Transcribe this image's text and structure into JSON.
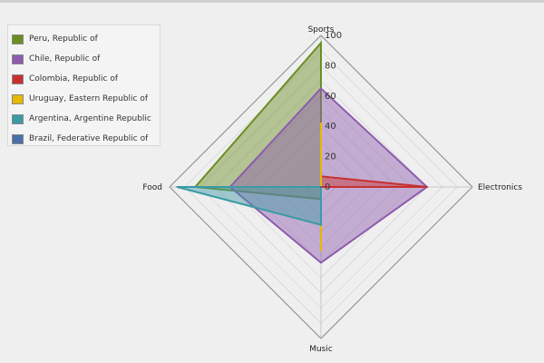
{
  "chart_data": {
    "type": "radar",
    "axes": [
      "Sports",
      "Electronics",
      "Music",
      "Food"
    ],
    "scale": {
      "min": 0,
      "max": 100,
      "ticks": [
        0,
        20,
        40,
        60,
        80,
        100
      ]
    },
    "grid": true,
    "legend_position": "top-left",
    "series": [
      {
        "name": "Peru, Republic of",
        "color": "#6b8e23",
        "values": [
          95,
          0,
          8,
          83
        ]
      },
      {
        "name": "Chile, Republic of",
        "color": "#8e5cae",
        "values": [
          65,
          70,
          50,
          60
        ]
      },
      {
        "name": "Colombia, Republic of",
        "color": "#c83030",
        "values": [
          7,
          70,
          0,
          0
        ]
      },
      {
        "name": "Uruguay, Eastern Republic of",
        "color": "#e6b800",
        "values": [
          42,
          0,
          42,
          0
        ]
      },
      {
        "name": "Argentina, Argentine Republic",
        "color": "#3b9aa6",
        "values": [
          0,
          0,
          25,
          95
        ]
      },
      {
        "name": "Brazil, Federative Republic of",
        "color": "#4a6fa8",
        "values": [
          0,
          0,
          0,
          0
        ]
      }
    ]
  }
}
